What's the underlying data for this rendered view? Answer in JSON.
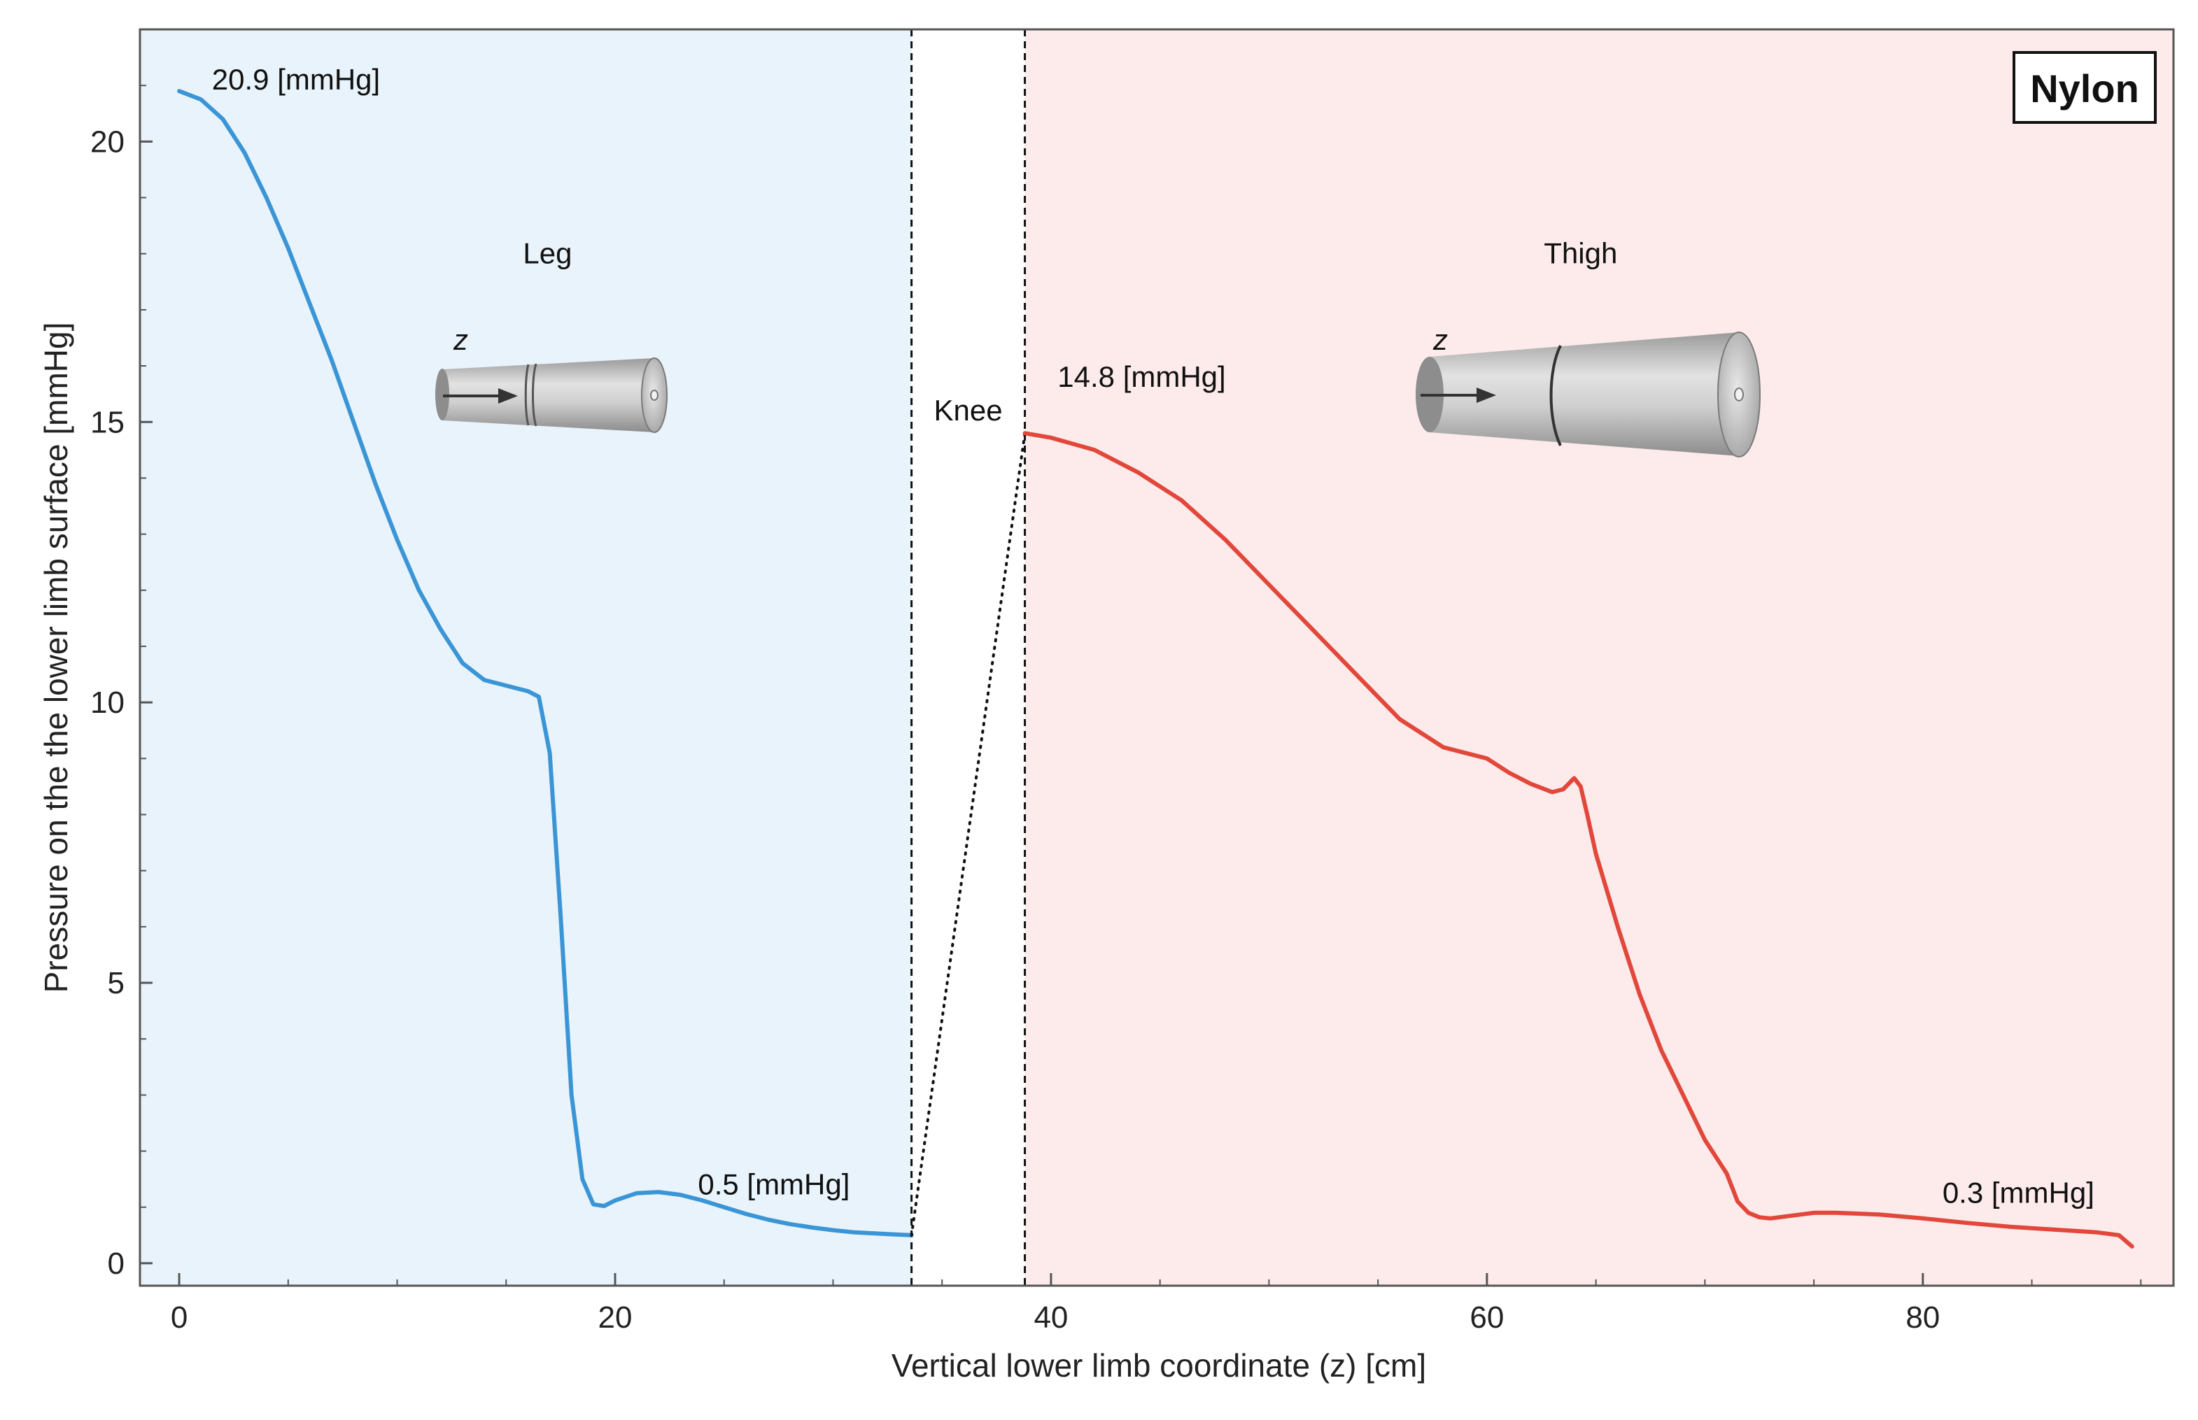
{
  "chart_data": {
    "type": "line",
    "title": "",
    "badge": "Nylon",
    "xlabel": "Vertical lower limb coordinate (z) [cm]",
    "ylabel": "Pressure on the the lower limb surface [mmHg]",
    "xlim": [
      -1.8,
      91.5
    ],
    "ylim": [
      -0.4,
      22.0
    ],
    "x_ticks": [
      0,
      20,
      40,
      60,
      80
    ],
    "y_ticks": [
      0,
      5,
      10,
      15,
      20
    ],
    "x_tick_labels": [
      "0",
      "20",
      "40",
      "60",
      "80"
    ],
    "y_tick_labels": [
      "0",
      "5",
      "10",
      "15",
      "20"
    ],
    "regions": [
      {
        "name": "Leg",
        "label": "Leg",
        "x_start": -1.8,
        "x_end": 33.6,
        "fill": "#e9f3fb",
        "label_pos": [
          16.9,
          18.0
        ]
      },
      {
        "name": "Knee",
        "label": "Knee",
        "x_start": 33.6,
        "x_end": 38.8,
        "fill": "#ffffff",
        "label_pos": [
          36.2,
          15.2
        ]
      },
      {
        "name": "Thigh",
        "label": "Thigh",
        "x_start": 38.8,
        "x_end": 91.5,
        "fill": "#fcebea",
        "label_pos": [
          64.3,
          18.0
        ]
      }
    ],
    "boundaries": [
      33.6,
      38.8
    ],
    "series": [
      {
        "name": "Leg",
        "color": "#3a95d6",
        "x": [
          0,
          1,
          2,
          3,
          4,
          5,
          6,
          7,
          8,
          9,
          10,
          11,
          12,
          13,
          14,
          15,
          15.5,
          16,
          16.5,
          17,
          17.5,
          18,
          18.5,
          19,
          19.5,
          20,
          21,
          22,
          23,
          24,
          25,
          26,
          27,
          28,
          29,
          30,
          31,
          32,
          33,
          33.6
        ],
        "values": [
          20.9,
          20.75,
          20.4,
          19.8,
          19.0,
          18.1,
          17.1,
          16.1,
          15.0,
          13.9,
          12.9,
          12.0,
          11.3,
          10.7,
          10.4,
          10.3,
          10.25,
          10.2,
          10.1,
          9.1,
          6.2,
          3.0,
          1.5,
          1.05,
          1.02,
          1.12,
          1.25,
          1.27,
          1.22,
          1.12,
          1.0,
          0.88,
          0.78,
          0.7,
          0.64,
          0.59,
          0.55,
          0.53,
          0.51,
          0.5
        ]
      },
      {
        "name": "Knee",
        "color": "#111111",
        "style": "dotted",
        "x": [
          33.6,
          38.8
        ],
        "values": [
          0.5,
          14.8
        ]
      },
      {
        "name": "Thigh",
        "color": "#e2473b",
        "x": [
          38.8,
          40,
          42,
          44,
          46,
          48,
          50,
          52,
          54,
          56,
          58,
          60,
          61,
          62,
          63,
          63.5,
          64,
          64.3,
          64.6,
          65,
          66,
          67,
          68,
          69,
          70,
          71,
          71.5,
          72,
          72.5,
          73,
          74,
          75,
          76,
          78,
          80,
          82,
          84,
          86,
          88,
          89,
          89.6
        ],
        "values": [
          14.8,
          14.72,
          14.5,
          14.1,
          13.6,
          12.9,
          12.1,
          11.3,
          10.5,
          9.7,
          9.2,
          9.0,
          8.75,
          8.55,
          8.4,
          8.45,
          8.65,
          8.5,
          8.0,
          7.3,
          6.0,
          4.8,
          3.8,
          3.0,
          2.2,
          1.6,
          1.1,
          0.9,
          0.82,
          0.8,
          0.85,
          0.9,
          0.9,
          0.87,
          0.8,
          0.72,
          0.65,
          0.6,
          0.55,
          0.5,
          0.3
        ]
      }
    ],
    "annotations": [
      {
        "text": "20.9  [mmHg]",
        "x": 1.5,
        "y": 21.1
      },
      {
        "text": "0.5  [mmHg]",
        "x": 23.8,
        "y": 1.4
      },
      {
        "text": "14.8  [mmHg]",
        "x": 40.3,
        "y": 15.8
      },
      {
        "text": "0.3  [mmHg]",
        "x": 80.9,
        "y": 1.25
      }
    ],
    "insets": [
      {
        "name": "leg-cone",
        "axis_label": "z",
        "region": "Leg"
      },
      {
        "name": "thigh-cone",
        "axis_label": "z",
        "region": "Thigh"
      }
    ]
  }
}
